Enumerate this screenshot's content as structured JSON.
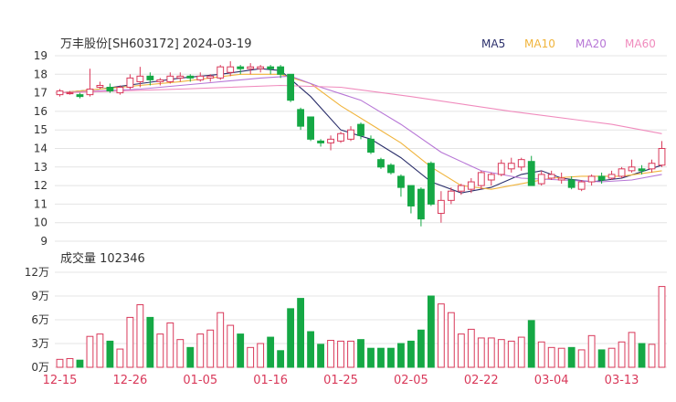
{
  "header": {
    "title": "万丰股份[SH603172] 2024-03-19",
    "ma_legend": [
      {
        "label": "MA5",
        "color": "#2b2f6b"
      },
      {
        "label": "MA10",
        "color": "#f0b43c"
      },
      {
        "label": "MA20",
        "color": "#b776d6"
      },
      {
        "label": "MA60",
        "color": "#f08bbd"
      }
    ]
  },
  "volume_label": "成交量 102346",
  "colors": {
    "up": "#d9395a",
    "down": "#15a845",
    "grid": "#e4e4e4",
    "axis_text": "#333333",
    "date_text": "#d9395a"
  },
  "chart_data": {
    "type": "candlestick",
    "price_axis": {
      "min": 9,
      "max": 19,
      "ticks": [
        "19",
        "18",
        "17",
        "16",
        "15",
        "14",
        "13",
        "12",
        "11",
        "10",
        "9"
      ]
    },
    "volume_axis": {
      "max": 12,
      "ticks": [
        "12万",
        "9万",
        "6万",
        "3万",
        "0万"
      ]
    },
    "date_labels": [
      {
        "index": 0,
        "label": "12-15"
      },
      {
        "index": 7,
        "label": "12-26"
      },
      {
        "index": 14,
        "label": "01-05"
      },
      {
        "index": 21,
        "label": "01-16"
      },
      {
        "index": 28,
        "label": "01-25"
      },
      {
        "index": 35,
        "label": "02-05"
      },
      {
        "index": 42,
        "label": "02-22"
      },
      {
        "index": 49,
        "label": "03-04"
      },
      {
        "index": 56,
        "label": "03-13"
      }
    ],
    "candles": [
      [
        16.9,
        17.1,
        16.8,
        17.2,
        1.0
      ],
      [
        17.0,
        17.0,
        16.9,
        17.1,
        1.1
      ],
      [
        16.9,
        16.8,
        16.7,
        17.0,
        0.9
      ],
      [
        16.9,
        17.2,
        16.8,
        18.3,
        3.9
      ],
      [
        17.3,
        17.4,
        17.2,
        17.6,
        4.2
      ],
      [
        17.3,
        17.1,
        17.0,
        17.5,
        3.3
      ],
      [
        17.0,
        17.3,
        16.9,
        17.4,
        2.3
      ],
      [
        17.3,
        17.8,
        17.2,
        18.0,
        6.3
      ],
      [
        17.6,
        17.9,
        17.3,
        18.4,
        7.9
      ],
      [
        17.9,
        17.7,
        17.4,
        18.1,
        6.3
      ],
      [
        17.6,
        17.7,
        17.4,
        17.8,
        4.2
      ],
      [
        17.6,
        17.9,
        17.5,
        18.1,
        5.6
      ],
      [
        17.8,
        17.9,
        17.6,
        18.1,
        3.5
      ],
      [
        17.9,
        17.8,
        17.6,
        18.0,
        2.5
      ],
      [
        17.7,
        17.9,
        17.6,
        18.1,
        4.2
      ],
      [
        17.8,
        17.9,
        17.6,
        18.0,
        4.7
      ],
      [
        17.8,
        18.4,
        17.7,
        18.5,
        6.9
      ],
      [
        18.1,
        18.4,
        17.9,
        18.7,
        5.3
      ],
      [
        18.4,
        18.3,
        18.0,
        18.5,
        4.2
      ],
      [
        18.3,
        18.4,
        18.0,
        18.6,
        2.5
      ],
      [
        18.3,
        18.4,
        18.1,
        18.5,
        3.0
      ],
      [
        18.4,
        18.3,
        18.0,
        18.5,
        3.8
      ],
      [
        18.4,
        18.0,
        17.8,
        18.5,
        2.1
      ],
      [
        18.0,
        16.6,
        16.5,
        18.0,
        7.4
      ],
      [
        16.1,
        15.2,
        15.0,
        16.2,
        8.7
      ],
      [
        15.7,
        14.5,
        14.4,
        15.7,
        4.5
      ],
      [
        14.4,
        14.3,
        14.1,
        14.5,
        2.9
      ],
      [
        14.3,
        14.5,
        13.9,
        14.7,
        3.4
      ],
      [
        14.4,
        14.8,
        14.3,
        14.9,
        3.3
      ],
      [
        14.5,
        15.0,
        14.4,
        15.2,
        3.3
      ],
      [
        15.3,
        14.7,
        14.5,
        15.4,
        3.5
      ],
      [
        14.5,
        13.8,
        13.7,
        14.7,
        2.4
      ],
      [
        13.4,
        13.0,
        12.9,
        13.5,
        2.4
      ],
      [
        13.1,
        12.7,
        12.6,
        13.2,
        2.4
      ],
      [
        12.5,
        11.9,
        11.4,
        12.6,
        3.0
      ],
      [
        12.0,
        10.9,
        10.5,
        12.0,
        3.3
      ],
      [
        11.8,
        10.2,
        9.8,
        11.9,
        4.7
      ],
      [
        13.2,
        11.0,
        10.9,
        13.3,
        9.0
      ],
      [
        10.5,
        11.2,
        10.0,
        11.7,
        8.0
      ],
      [
        11.2,
        11.7,
        11.0,
        11.9,
        6.9
      ],
      [
        11.7,
        12.0,
        11.5,
        12.1,
        4.2
      ],
      [
        11.8,
        12.2,
        11.6,
        12.4,
        4.8
      ],
      [
        12.0,
        12.7,
        11.8,
        12.8,
        3.7
      ],
      [
        12.3,
        12.6,
        12.0,
        12.7,
        3.7
      ],
      [
        12.6,
        13.2,
        12.5,
        13.4,
        3.5
      ],
      [
        12.9,
        13.2,
        12.7,
        13.5,
        3.3
      ],
      [
        13.0,
        13.4,
        12.8,
        13.5,
        3.8
      ],
      [
        13.3,
        12.0,
        12.0,
        13.6,
        5.9
      ],
      [
        12.1,
        12.6,
        12.0,
        12.8,
        3.2
      ],
      [
        12.4,
        12.6,
        12.3,
        12.8,
        2.5
      ],
      [
        12.3,
        12.4,
        12.1,
        12.7,
        2.4
      ],
      [
        12.3,
        11.9,
        11.8,
        12.5,
        2.5
      ],
      [
        11.8,
        12.2,
        11.7,
        12.3,
        2.2
      ],
      [
        12.2,
        12.5,
        12.0,
        12.6,
        4.0
      ],
      [
        12.5,
        12.3,
        12.1,
        12.7,
        2.2
      ],
      [
        12.4,
        12.6,
        12.3,
        12.8,
        2.4
      ],
      [
        12.5,
        12.9,
        12.4,
        13.0,
        3.2
      ],
      [
        12.8,
        13.0,
        12.7,
        13.4,
        4.4
      ],
      [
        12.9,
        12.8,
        12.6,
        13.1,
        3.0
      ],
      [
        12.9,
        13.2,
        12.7,
        13.4,
        2.9
      ],
      [
        13.1,
        14.0,
        13.0,
        14.4,
        10.2
      ]
    ],
    "ma_lines": {
      "MA5": [
        [
          0,
          17.0
        ],
        [
          4,
          17.2
        ],
        [
          8,
          17.5
        ],
        [
          12,
          17.8
        ],
        [
          16,
          18.0
        ],
        [
          20,
          18.3
        ],
        [
          22,
          18.2
        ],
        [
          25,
          16.8
        ],
        [
          28,
          15.0
        ],
        [
          31,
          14.5
        ],
        [
          34,
          13.5
        ],
        [
          37,
          12.2
        ],
        [
          40,
          11.6
        ],
        [
          43,
          11.9
        ],
        [
          46,
          12.6
        ],
        [
          48,
          12.8
        ],
        [
          50,
          12.4
        ],
        [
          53,
          12.2
        ],
        [
          56,
          12.4
        ],
        [
          60,
          13.1
        ]
      ],
      "MA10": [
        [
          0,
          17.0
        ],
        [
          6,
          17.3
        ],
        [
          12,
          17.6
        ],
        [
          18,
          18.0
        ],
        [
          22,
          18.0
        ],
        [
          25,
          17.5
        ],
        [
          28,
          16.3
        ],
        [
          31,
          15.3
        ],
        [
          34,
          14.3
        ],
        [
          37,
          13.0
        ],
        [
          40,
          12.0
        ],
        [
          43,
          11.8
        ],
        [
          46,
          12.1
        ],
        [
          49,
          12.4
        ],
        [
          52,
          12.5
        ],
        [
          56,
          12.5
        ],
        [
          60,
          12.8
        ]
      ],
      "MA20": [
        [
          0,
          17.0
        ],
        [
          8,
          17.2
        ],
        [
          14,
          17.5
        ],
        [
          20,
          17.8
        ],
        [
          23,
          17.9
        ],
        [
          26,
          17.3
        ],
        [
          30,
          16.6
        ],
        [
          34,
          15.3
        ],
        [
          38,
          13.8
        ],
        [
          42,
          12.8
        ],
        [
          46,
          12.4
        ],
        [
          50,
          12.3
        ],
        [
          54,
          12.2
        ],
        [
          57,
          12.3
        ],
        [
          60,
          12.6
        ]
      ],
      "MA60": [
        [
          0,
          17.0
        ],
        [
          12,
          17.2
        ],
        [
          22,
          17.4
        ],
        [
          28,
          17.3
        ],
        [
          35,
          16.8
        ],
        [
          45,
          16.0
        ],
        [
          55,
          15.3
        ],
        [
          60,
          14.8
        ]
      ]
    }
  }
}
